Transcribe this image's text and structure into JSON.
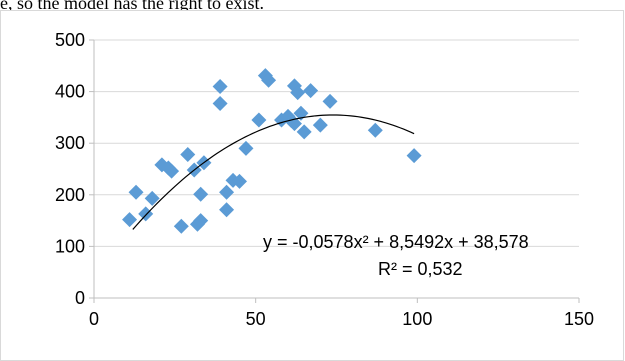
{
  "document": {
    "text_fragment": "e, so the model has the right to exist."
  },
  "chart_data": {
    "type": "scatter",
    "title": "",
    "xlabel": "",
    "ylabel": "",
    "xlim": [
      0,
      150
    ],
    "ylim": [
      0,
      500
    ],
    "xticks": [
      0,
      50,
      100,
      150
    ],
    "yticks": [
      0,
      100,
      200,
      300,
      400,
      500
    ],
    "grid": "horizontal",
    "marker": "diamond",
    "marker_color": "#5b9bd5",
    "trendline_color": "#000000",
    "points": [
      [
        11,
        152
      ],
      [
        13,
        205
      ],
      [
        16,
        163
      ],
      [
        18,
        193
      ],
      [
        21,
        258
      ],
      [
        23,
        252
      ],
      [
        24,
        246
      ],
      [
        27,
        139
      ],
      [
        29,
        278
      ],
      [
        31,
        248
      ],
      [
        32,
        143
      ],
      [
        33,
        150
      ],
      [
        33,
        201
      ],
      [
        34,
        262
      ],
      [
        39,
        410
      ],
      [
        39,
        377
      ],
      [
        41,
        171
      ],
      [
        41,
        205
      ],
      [
        43,
        228
      ],
      [
        45,
        226
      ],
      [
        47,
        290
      ],
      [
        51,
        345
      ],
      [
        53,
        431
      ],
      [
        54,
        422
      ],
      [
        58,
        345
      ],
      [
        60,
        352
      ],
      [
        61,
        344
      ],
      [
        62,
        411
      ],
      [
        62,
        338
      ],
      [
        63,
        398
      ],
      [
        64,
        358
      ],
      [
        65,
        322
      ],
      [
        67,
        402
      ],
      [
        70,
        335
      ],
      [
        73,
        381
      ],
      [
        87,
        325
      ],
      [
        99,
        276
      ]
    ],
    "trendline": {
      "type": "polynomial",
      "a": -0.0578,
      "b": 8.5492,
      "c": 38.578,
      "x_range": [
        12,
        99
      ]
    },
    "equation_label": "y = -0,0578x² + 8,5492x + 38,578",
    "r2_label": "R² = 0,532"
  }
}
